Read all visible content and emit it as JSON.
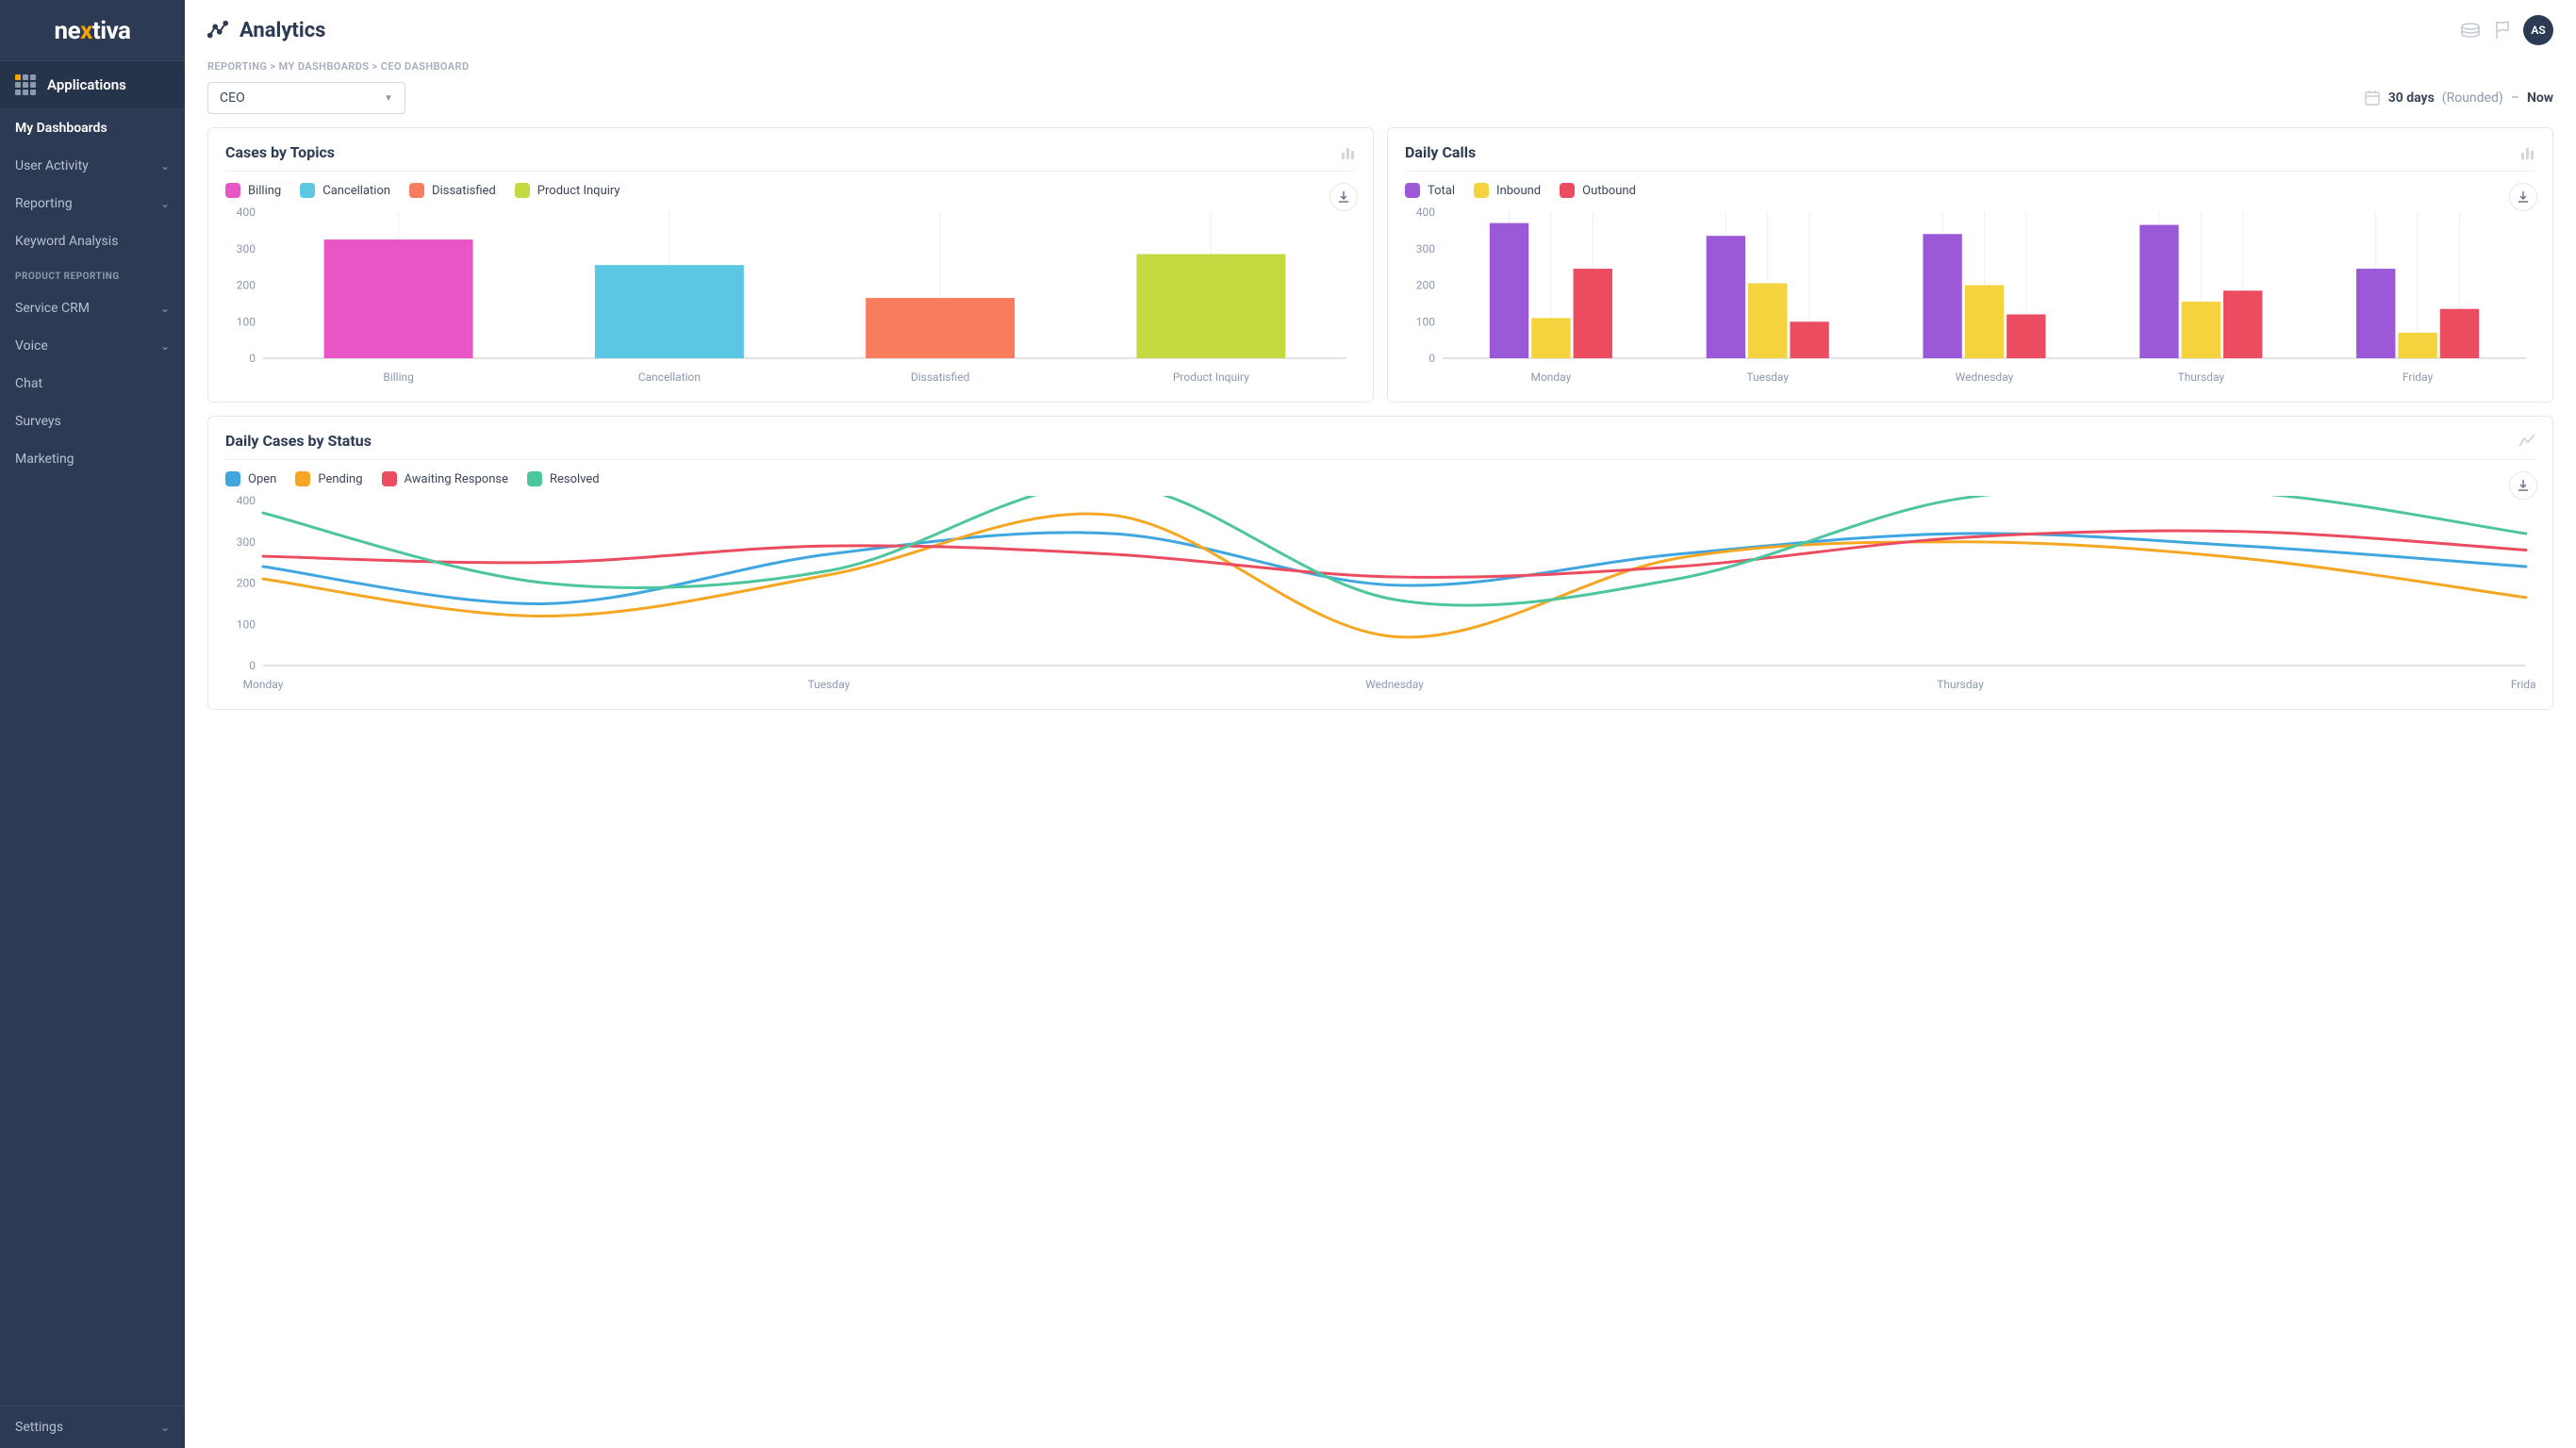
{
  "brand": "nextiva",
  "sidebar": {
    "apps_label": "Applications",
    "items": [
      {
        "label": "My Dashboards",
        "active": true,
        "chevron": false
      },
      {
        "label": "User Activity",
        "active": false,
        "chevron": true
      },
      {
        "label": "Reporting",
        "active": false,
        "chevron": true
      },
      {
        "label": "Keyword Analysis",
        "active": false,
        "chevron": false
      }
    ],
    "section_label": "PRODUCT REPORTING",
    "items2": [
      {
        "label": "Service CRM",
        "chevron": true
      },
      {
        "label": "Voice",
        "chevron": true
      },
      {
        "label": "Chat",
        "chevron": false
      },
      {
        "label": "Surveys",
        "chevron": false
      },
      {
        "label": "Marketing",
        "chevron": false
      }
    ],
    "settings_label": "Settings"
  },
  "header": {
    "title": "Analytics",
    "avatar_initials": "AS"
  },
  "breadcrumb": [
    "REPORTING",
    "MY DASHBOARDS",
    "CEO DASHBOARD"
  ],
  "dashboard_select": "CEO",
  "date_range": {
    "value": "30 days",
    "mode": "(Rounded)",
    "sep": "–",
    "now": "Now"
  },
  "colors": {
    "border": "#e3e7ee",
    "muted": "#8c99af",
    "text": "#3c4656",
    "pink": "#e756c4",
    "cyan": "#5cc7e2",
    "coral": "#f77d5e",
    "olive": "#c4d840",
    "purple": "#9b59d8",
    "yellow": "#f4d33f",
    "red": "#eb4c60",
    "blue": "#3fa6e0",
    "orange": "#f5a623",
    "green": "#4cc69a"
  },
  "chart1": {
    "title": "Cases by Topics",
    "type": "bar",
    "ylim": [
      0,
      400
    ],
    "ytick_step": 100,
    "categories": [
      "Billing",
      "Cancellation",
      "Dissatisfied",
      "Product Inquiry"
    ],
    "values": [
      325,
      255,
      165,
      285
    ],
    "bar_colors": [
      "#e756c4",
      "#5cc7e2",
      "#f77d5e",
      "#c4d840"
    ],
    "legend": [
      {
        "label": "Billing",
        "color": "#e756c4"
      },
      {
        "label": "Cancellation",
        "color": "#5cc7e2"
      },
      {
        "label": "Dissatisfied",
        "color": "#f77d5e"
      },
      {
        "label": "Product Inquiry",
        "color": "#c4d840"
      }
    ],
    "bar_width": 0.55
  },
  "chart2": {
    "title": "Daily Calls",
    "type": "grouped-bar",
    "ylim": [
      0,
      400
    ],
    "ytick_step": 100,
    "categories": [
      "Monday",
      "Tuesday",
      "Wednesday",
      "Thursday",
      "Friday"
    ],
    "series": [
      {
        "label": "Total",
        "color": "#9b59d8",
        "values": [
          370,
          335,
          340,
          365,
          245
        ]
      },
      {
        "label": "Inbound",
        "color": "#f4d33f",
        "values": [
          110,
          205,
          200,
          155,
          70
        ]
      },
      {
        "label": "Outbound",
        "color": "#eb4c60",
        "values": [
          245,
          100,
          120,
          185,
          135
        ]
      }
    ],
    "bar_width": 0.18
  },
  "chart3": {
    "title": "Daily Cases by Status",
    "type": "line",
    "ylim": [
      0,
      400
    ],
    "ytick_step": 100,
    "categories": [
      "Monday",
      "Tuesday",
      "Wednesday",
      "Thursday",
      "Friday"
    ],
    "series": [
      {
        "label": "Open",
        "color": "#3fa6e0",
        "values": [
          240,
          150,
          270,
          320,
          195,
          270,
          320,
          290,
          240
        ]
      },
      {
        "label": "Pending",
        "color": "#f5a623",
        "values": [
          210,
          120,
          220,
          365,
          70,
          260,
          300,
          260,
          165
        ]
      },
      {
        "label": "Awaiting Response",
        "color": "#eb4c60",
        "values": [
          265,
          250,
          290,
          270,
          215,
          240,
          310,
          325,
          280
        ]
      },
      {
        "label": "Resolved",
        "color": "#4cc69a",
        "values": [
          370,
          200,
          230,
          440,
          160,
          210,
          405,
          420,
          320
        ]
      }
    ],
    "line_width": 3
  }
}
